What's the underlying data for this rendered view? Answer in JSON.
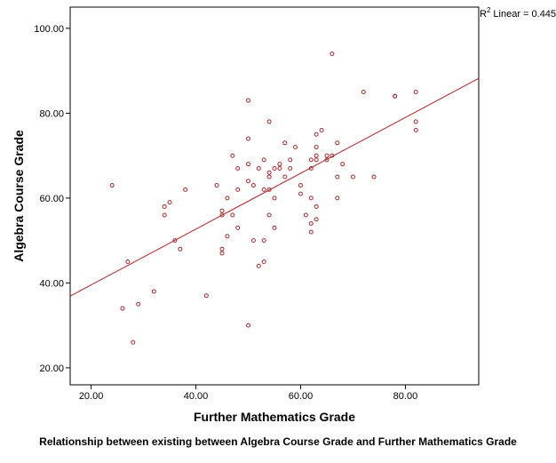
{
  "caption": "Relationship between existing between Algebra Course Grade and Further Mathematics Grade",
  "chart_data": {
    "type": "scatter",
    "xlabel": "Further Mathematics Grade",
    "ylabel": "Algebra Course Grade",
    "xlim": [
      16,
      94
    ],
    "ylim": [
      16,
      105
    ],
    "xticks": [
      "20.00",
      "40.00",
      "60.00",
      "80.00"
    ],
    "yticks": [
      "20.00",
      "40.00",
      "60.00",
      "80.00",
      "100.00"
    ],
    "xtick_values": [
      20,
      40,
      60,
      80
    ],
    "ytick_values": [
      20,
      40,
      60,
      80,
      100
    ],
    "grid": false,
    "r2_label": "Linear = 0.445",
    "r2_prefix": "R",
    "r2_sup": "2",
    "fit_line": {
      "x": [
        16,
        94
      ],
      "y": [
        36.9,
        88.2
      ]
    },
    "colors": {
      "points": "#a52a2a",
      "line": "#b22222"
    },
    "series": [
      {
        "points": [
          [
            24,
            63
          ],
          [
            26,
            34
          ],
          [
            27,
            45
          ],
          [
            28,
            26
          ],
          [
            29,
            35
          ],
          [
            32,
            38
          ],
          [
            34,
            58
          ],
          [
            34,
            56
          ],
          [
            35,
            59
          ],
          [
            36,
            50
          ],
          [
            37,
            48
          ],
          [
            38,
            62
          ],
          [
            42,
            37
          ],
          [
            44,
            63
          ],
          [
            45,
            57
          ],
          [
            45,
            56
          ],
          [
            45,
            48
          ],
          [
            45,
            47
          ],
          [
            46,
            51
          ],
          [
            46,
            60
          ],
          [
            47,
            70
          ],
          [
            47,
            56
          ],
          [
            48,
            67
          ],
          [
            48,
            62
          ],
          [
            48,
            53
          ],
          [
            50,
            83
          ],
          [
            50,
            74
          ],
          [
            50,
            68
          ],
          [
            50,
            64
          ],
          [
            50,
            30
          ],
          [
            51,
            63
          ],
          [
            51,
            50
          ],
          [
            52,
            67
          ],
          [
            52,
            44
          ],
          [
            53,
            69
          ],
          [
            53,
            62
          ],
          [
            53,
            50
          ],
          [
            53,
            45
          ],
          [
            54,
            78
          ],
          [
            54,
            66
          ],
          [
            54,
            65
          ],
          [
            54,
            62
          ],
          [
            54,
            56
          ],
          [
            55,
            67
          ],
          [
            55,
            60
          ],
          [
            55,
            53
          ],
          [
            56,
            68
          ],
          [
            56,
            67
          ],
          [
            57,
            73
          ],
          [
            57,
            65
          ],
          [
            58,
            69
          ],
          [
            58,
            67
          ],
          [
            59,
            72
          ],
          [
            60,
            63
          ],
          [
            60,
            61
          ],
          [
            61,
            56
          ],
          [
            62,
            69
          ],
          [
            62,
            67
          ],
          [
            62,
            60
          ],
          [
            62,
            54
          ],
          [
            62,
            52
          ],
          [
            63,
            75
          ],
          [
            63,
            72
          ],
          [
            63,
            70
          ],
          [
            63,
            69
          ],
          [
            63,
            58
          ],
          [
            63,
            55
          ],
          [
            64,
            76
          ],
          [
            65,
            70
          ],
          [
            65,
            69
          ],
          [
            66,
            94
          ],
          [
            66,
            70
          ],
          [
            67,
            73
          ],
          [
            67,
            60
          ],
          [
            67,
            65
          ],
          [
            68,
            68
          ],
          [
            70,
            65
          ],
          [
            72,
            85
          ],
          [
            74,
            65
          ],
          [
            78,
            84
          ],
          [
            78,
            84
          ],
          [
            82,
            85
          ],
          [
            82,
            78
          ],
          [
            82,
            76
          ]
        ]
      }
    ]
  }
}
